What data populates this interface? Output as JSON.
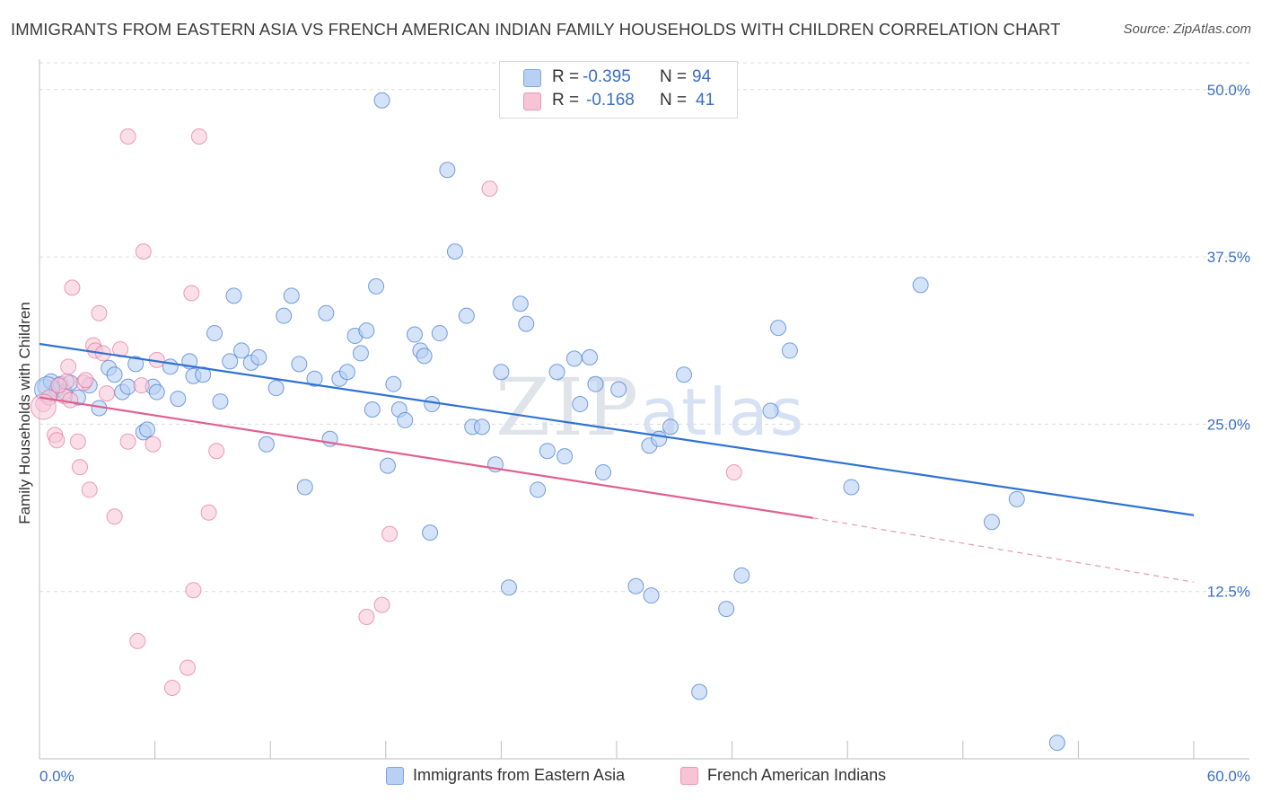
{
  "title": "IMMIGRANTS FROM EASTERN ASIA VS FRENCH AMERICAN INDIAN FAMILY HOUSEHOLDS WITH CHILDREN CORRELATION CHART",
  "source": "Source: ZipAtlas.com",
  "watermark": {
    "zip": "ZIP",
    "atlas": "atlas"
  },
  "colors": {
    "blue": "#4a7fd4",
    "blue_fill": "#b8d0f2",
    "pink": "#e0608f",
    "pink_fill": "#f7c4d5",
    "grid": "#dcdcdc",
    "axis_label": "#3a6fc4"
  },
  "legend_top": {
    "rows": [
      {
        "r_label": "R =",
        "r_value": "-0.395",
        "n_label": "N =",
        "n_value": "94"
      },
      {
        "r_label": "R =",
        "r_value": "-0.168",
        "n_label": "N =",
        "n_value": "41"
      }
    ]
  },
  "chart_data": {
    "type": "scatter",
    "title": "IMMIGRANTS FROM EASTERN ASIA VS FRENCH AMERICAN INDIAN FAMILY HOUSEHOLDS WITH CHILDREN CORRELATION CHART",
    "xlabel": "",
    "ylabel": "Family Households with Children",
    "xlim": [
      0,
      60
    ],
    "ylim": [
      0,
      52
    ],
    "x_tick_labels": [
      "0.0%",
      "60.0%"
    ],
    "y_ticks": [
      12.5,
      25.0,
      37.5,
      50.0
    ],
    "y_tick_labels": [
      "12.5%",
      "25.0%",
      "37.5%",
      "50.0%"
    ],
    "grid": true,
    "legend_position": "bottom",
    "series": [
      {
        "name": "Immigrants from Eastern Asia",
        "r": -0.395,
        "n": 94,
        "trend": {
          "x": [
            0,
            60
          ],
          "y": [
            31.0,
            18.2
          ]
        },
        "points": [
          [
            0.3,
            27.8
          ],
          [
            0.6,
            28.2
          ],
          [
            0.9,
            27.6
          ],
          [
            1.1,
            28.0
          ],
          [
            1.3,
            27.4
          ],
          [
            1.6,
            28.1
          ],
          [
            2.0,
            27.0
          ],
          [
            2.6,
            27.9
          ],
          [
            3.1,
            26.2
          ],
          [
            3.6,
            29.2
          ],
          [
            3.9,
            28.7
          ],
          [
            4.3,
            27.4
          ],
          [
            4.6,
            27.8
          ],
          [
            5.0,
            29.5
          ],
          [
            5.4,
            24.4
          ],
          [
            5.6,
            24.6
          ],
          [
            5.9,
            27.8
          ],
          [
            6.1,
            27.4
          ],
          [
            6.8,
            29.3
          ],
          [
            7.2,
            26.9
          ],
          [
            7.8,
            29.7
          ],
          [
            8.0,
            28.6
          ],
          [
            8.5,
            28.7
          ],
          [
            9.1,
            31.8
          ],
          [
            9.4,
            26.7
          ],
          [
            9.9,
            29.7
          ],
          [
            10.1,
            34.6
          ],
          [
            10.5,
            30.5
          ],
          [
            11.0,
            29.6
          ],
          [
            11.4,
            30.0
          ],
          [
            11.8,
            23.5
          ],
          [
            12.3,
            27.7
          ],
          [
            12.7,
            33.1
          ],
          [
            13.1,
            34.6
          ],
          [
            13.5,
            29.5
          ],
          [
            13.8,
            20.3
          ],
          [
            14.3,
            28.4
          ],
          [
            14.9,
            33.3
          ],
          [
            15.1,
            23.9
          ],
          [
            15.6,
            28.4
          ],
          [
            16.0,
            28.9
          ],
          [
            16.4,
            31.6
          ],
          [
            16.7,
            30.3
          ],
          [
            17.0,
            32.0
          ],
          [
            17.3,
            26.1
          ],
          [
            17.5,
            35.3
          ],
          [
            18.1,
            21.9
          ],
          [
            18.4,
            28.0
          ],
          [
            18.7,
            26.1
          ],
          [
            19.0,
            25.3
          ],
          [
            19.5,
            31.7
          ],
          [
            19.8,
            30.5
          ],
          [
            20.0,
            30.1
          ],
          [
            20.4,
            26.5
          ],
          [
            20.8,
            31.8
          ],
          [
            21.2,
            44.0
          ],
          [
            21.6,
            37.9
          ],
          [
            22.2,
            33.1
          ],
          [
            22.5,
            24.8
          ],
          [
            23.0,
            24.8
          ],
          [
            23.7,
            22.0
          ],
          [
            24.0,
            28.9
          ],
          [
            24.4,
            12.8
          ],
          [
            25.0,
            34.0
          ],
          [
            25.3,
            32.5
          ],
          [
            25.9,
            20.1
          ],
          [
            26.4,
            23.0
          ],
          [
            26.9,
            28.9
          ],
          [
            27.3,
            22.6
          ],
          [
            27.8,
            29.9
          ],
          [
            28.1,
            26.5
          ],
          [
            28.6,
            30.0
          ],
          [
            28.9,
            28.0
          ],
          [
            29.3,
            21.4
          ],
          [
            30.1,
            27.6
          ],
          [
            31.0,
            12.9
          ],
          [
            31.7,
            23.4
          ],
          [
            31.8,
            12.2
          ],
          [
            32.2,
            23.9
          ],
          [
            32.8,
            24.8
          ],
          [
            33.5,
            28.7
          ],
          [
            34.3,
            5.0
          ],
          [
            35.7,
            11.2
          ],
          [
            36.5,
            13.7
          ],
          [
            38.0,
            26.0
          ],
          [
            38.4,
            32.2
          ],
          [
            39.0,
            30.5
          ],
          [
            42.2,
            20.3
          ],
          [
            45.8,
            35.4
          ],
          [
            49.5,
            17.7
          ],
          [
            50.8,
            19.4
          ],
          [
            20.3,
            16.9
          ],
          [
            17.8,
            49.2
          ],
          [
            52.9,
            1.2
          ]
        ]
      },
      {
        "name": "French American Indians",
        "r": -0.168,
        "n": 41,
        "trend": {
          "x": [
            0,
            40.2
          ],
          "y": [
            27.0,
            18.0
          ]
        },
        "trend_dashed": {
          "x": [
            40.2,
            60
          ],
          "y": [
            18.0,
            13.2
          ]
        },
        "points": [
          [
            0.2,
            26.5
          ],
          [
            0.5,
            27.0
          ],
          [
            0.8,
            24.2
          ],
          [
            0.9,
            23.8
          ],
          [
            1.4,
            28.2
          ],
          [
            1.3,
            27.1
          ],
          [
            1.6,
            26.8
          ],
          [
            1.5,
            29.3
          ],
          [
            1.7,
            35.2
          ],
          [
            2.0,
            23.7
          ],
          [
            2.1,
            21.8
          ],
          [
            2.3,
            28.1
          ],
          [
            2.4,
            28.3
          ],
          [
            2.6,
            20.1
          ],
          [
            2.8,
            30.9
          ],
          [
            2.9,
            30.5
          ],
          [
            3.1,
            33.3
          ],
          [
            3.3,
            30.3
          ],
          [
            3.5,
            27.3
          ],
          [
            3.9,
            18.1
          ],
          [
            4.2,
            30.6
          ],
          [
            4.6,
            23.7
          ],
          [
            4.6,
            46.5
          ],
          [
            5.1,
            8.8
          ],
          [
            5.3,
            27.9
          ],
          [
            5.4,
            37.9
          ],
          [
            5.9,
            23.5
          ],
          [
            6.1,
            29.8
          ],
          [
            6.9,
            5.3
          ],
          [
            7.7,
            6.8
          ],
          [
            7.9,
            34.8
          ],
          [
            8.0,
            12.6
          ],
          [
            8.3,
            46.5
          ],
          [
            8.8,
            18.4
          ],
          [
            9.2,
            23.0
          ],
          [
            17.0,
            10.6
          ],
          [
            17.8,
            11.5
          ],
          [
            18.2,
            16.8
          ],
          [
            23.4,
            42.6
          ],
          [
            36.1,
            21.4
          ],
          [
            1.0,
            27.9
          ]
        ]
      }
    ]
  }
}
